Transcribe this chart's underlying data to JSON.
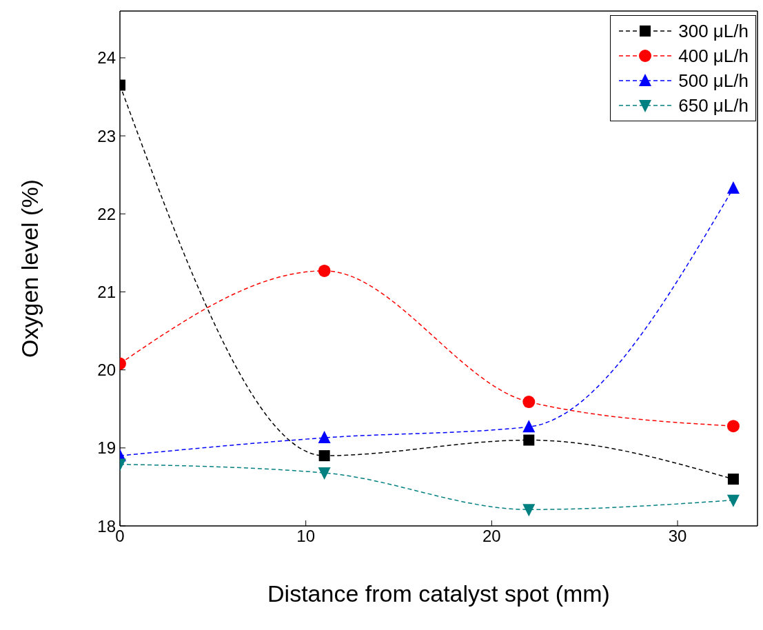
{
  "chart_data": {
    "type": "line",
    "xlabel": "Distance from catalyst spot (mm)",
    "ylabel": "Oxygen level (%)",
    "x": [
      0,
      11,
      22,
      33
    ],
    "series": [
      {
        "name": "300 μL/h",
        "color": "#000000",
        "marker": "square",
        "values": [
          23.65,
          18.9,
          19.1,
          18.6
        ]
      },
      {
        "name": "400 μL/h",
        "color": "#ff0000",
        "marker": "circle",
        "values": [
          20.08,
          21.27,
          19.59,
          19.28
        ]
      },
      {
        "name": "500 μL/h",
        "color": "#0000ff",
        "marker": "triangle",
        "values": [
          18.9,
          19.13,
          19.27,
          22.33
        ]
      },
      {
        "name": "650 μL/h",
        "color": "#008080",
        "marker": "triangle-down",
        "values": [
          18.79,
          18.68,
          18.21,
          18.33
        ]
      }
    ],
    "line_style": "dashed",
    "xlim": [
      0,
      34.3
    ],
    "xticks": [
      0,
      10,
      20,
      30
    ],
    "ylim": [
      18,
      24.6
    ],
    "yticks": [
      18,
      19,
      20,
      21,
      22,
      23,
      24
    ],
    "grid": false,
    "legend": "top right"
  }
}
